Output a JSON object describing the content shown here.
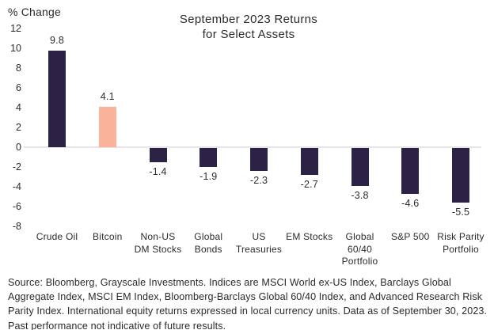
{
  "header": {
    "axis_label": "% Change"
  },
  "title": {
    "line1": "September 2023 Returns",
    "line2": "for Select Assets"
  },
  "colors": {
    "bar": "#2c2245",
    "highlight": "#fbb29b",
    "zero_line": "#e6e4e4",
    "text": "#2b2b2b"
  },
  "chart_data": {
    "type": "bar",
    "title": "September 2023 Returns for Select Assets",
    "xlabel": "",
    "ylabel": "% Change",
    "categories": [
      "Crude Oil",
      "Bitcoin",
      "Non-US\nDM Stocks",
      "Global\nBonds",
      "US\nTreasuries",
      "EM Stocks",
      "Global\n60/40\nPortfolio",
      "S&P 500",
      "Risk Parity\nPortfolio"
    ],
    "values": [
      9.8,
      4.1,
      -1.4,
      -1.9,
      -2.3,
      -2.7,
      -3.8,
      -4.6,
      -5.5
    ],
    "value_labels": [
      "9.8",
      "4.1",
      "-1.4",
      "-1.9",
      "-2.3",
      "-2.7",
      "-3.8",
      "-4.6",
      "-5.5"
    ],
    "highlight_index": 1,
    "yticks": [
      12,
      10,
      8,
      6,
      4,
      2,
      0,
      -2,
      -4,
      -6,
      -8
    ],
    "ylim": [
      -8,
      12
    ],
    "grid": false,
    "legend_position": "none"
  },
  "footer": {
    "lines": [
      "Source: Bloomberg, Grayscale Investments. Indices are MSCI World ex-US Index, Barclays Global",
      "Aggregate Index, MSCI EM Index, Bloomberg-Barclays Global 60/40 Index, and Advanced Research Risk",
      "Parity Index. International equity returns expressed in local currency units. Data as of September 30, 2023.",
      "Past performance not indicative of future results."
    ]
  }
}
